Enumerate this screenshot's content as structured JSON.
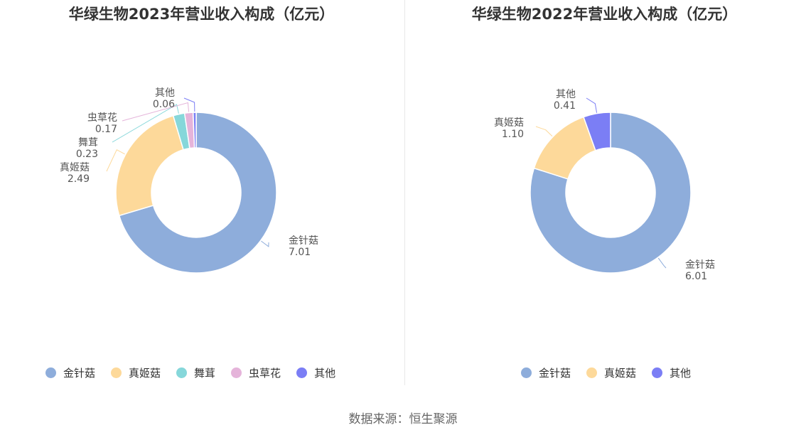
{
  "source": "数据来源：恒生聚源",
  "colors": {
    "金针菇": "#8eaddb",
    "真姬菇": "#fdd99a",
    "舞茸": "#86d7da",
    "虫草花": "#e5b4da",
    "其他": "#7b7ef5"
  },
  "chart_data": [
    {
      "type": "pie",
      "title": "华绿生物2023年营业收入构成（亿元）",
      "categories": [
        "金针菇",
        "真姬菇",
        "舞茸",
        "虫草花",
        "其他"
      ],
      "values": [
        7.01,
        2.49,
        0.23,
        0.17,
        0.06
      ],
      "value_labels": [
        "7.01",
        "2.49",
        "0.23",
        "0.17",
        "0.06"
      ],
      "legend": "bottom"
    },
    {
      "type": "pie",
      "title": "华绿生物2022年营业收入构成（亿元）",
      "categories": [
        "金针菇",
        "真姬菇",
        "其他"
      ],
      "values": [
        6.01,
        1.1,
        0.41
      ],
      "value_labels": [
        "6.01",
        "1.10",
        "0.41"
      ],
      "legend": "bottom"
    }
  ]
}
